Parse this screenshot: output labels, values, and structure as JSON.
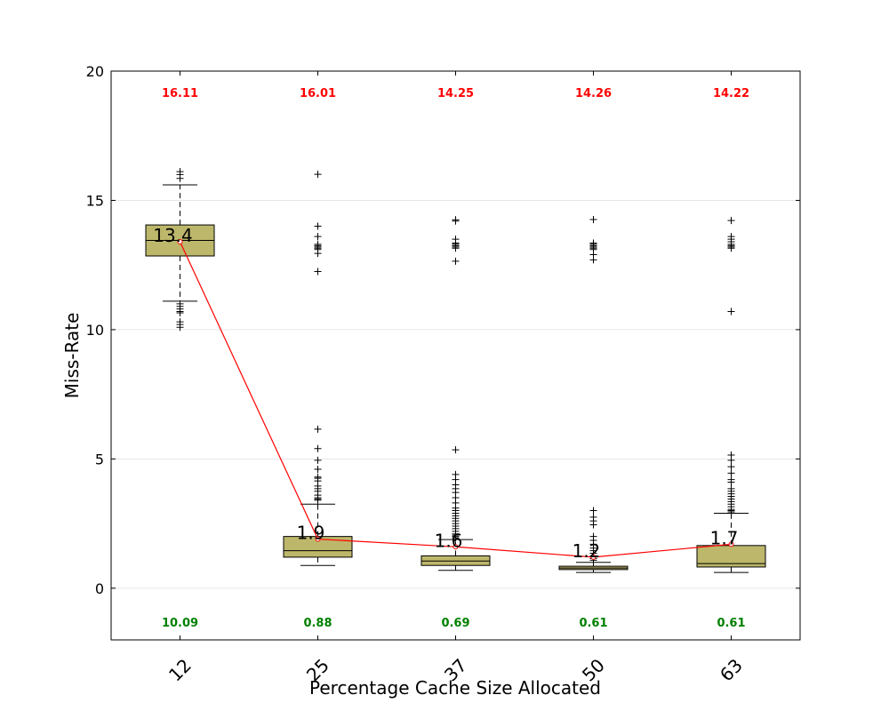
{
  "chart_data": {
    "type": "box",
    "xlabel": "Percentage Cache Size Allocated",
    "ylabel": "Miss-Rate",
    "ylim": [
      -2,
      20
    ],
    "yticks": [
      0,
      5,
      10,
      15,
      20
    ],
    "ytick_labels": [
      "0",
      "5",
      "10",
      "15",
      "20"
    ],
    "grid": "horizontal",
    "categories": [
      "12",
      "25",
      "37",
      "50",
      "63"
    ],
    "boxes": [
      {
        "category": "12",
        "whisker_low": 11.1,
        "q1": 12.85,
        "median": 13.45,
        "q3": 14.05,
        "whisker_high": 15.6,
        "mean": 13.4,
        "outliers": [
          16.11,
          16.0,
          15.85,
          11.0,
          10.9,
          10.8,
          10.7,
          10.65,
          10.3,
          10.2,
          10.09
        ]
      },
      {
        "category": "25",
        "whisker_low": 0.88,
        "q1": 1.2,
        "median": 1.45,
        "q3": 2.0,
        "whisker_high": 3.25,
        "mean": 1.9,
        "outliers": [
          16.01,
          14.0,
          13.6,
          13.3,
          13.25,
          13.2,
          13.15,
          13.1,
          12.95,
          12.25,
          6.15,
          5.4,
          4.95,
          4.6,
          4.3,
          4.25,
          4.15,
          3.95,
          3.85,
          3.75,
          3.6,
          3.5,
          3.45,
          3.4
        ]
      },
      {
        "category": "37",
        "whisker_low": 0.69,
        "q1": 0.88,
        "median": 1.05,
        "q3": 1.25,
        "whisker_high": 1.88,
        "mean": 1.6,
        "outliers": [
          14.25,
          14.2,
          13.5,
          13.35,
          13.3,
          13.25,
          13.2,
          13.15,
          12.65,
          5.35,
          4.4,
          4.2,
          4.0,
          3.85,
          3.7,
          3.5,
          3.3,
          3.1,
          3.0,
          2.9,
          2.8,
          2.7,
          2.6,
          2.5,
          2.4,
          2.3,
          2.2,
          2.1,
          2.05,
          2.0,
          1.95
        ]
      },
      {
        "category": "50",
        "whisker_low": 0.61,
        "q1": 0.72,
        "median": 0.78,
        "q3": 0.85,
        "whisker_high": 1.0,
        "mean": 1.2,
        "outliers": [
          14.26,
          13.35,
          13.3,
          13.25,
          13.2,
          13.15,
          13.1,
          12.9,
          12.7,
          3.0,
          2.75,
          2.6,
          2.45,
          2.0,
          1.85,
          1.7,
          1.55,
          1.45,
          1.35,
          1.25,
          1.15,
          1.08
        ]
      },
      {
        "category": "63",
        "whisker_low": 0.61,
        "q1": 0.82,
        "median": 0.95,
        "q3": 1.65,
        "whisker_high": 2.9,
        "mean": 1.7,
        "outliers": [
          14.22,
          13.6,
          13.5,
          13.4,
          13.3,
          13.25,
          13.2,
          13.15,
          10.7,
          5.15,
          4.95,
          4.7,
          4.45,
          4.2,
          4.1,
          3.85,
          3.75,
          3.65,
          3.55,
          3.45,
          3.35,
          3.25,
          3.15,
          3.05,
          3.0,
          2.95
        ]
      }
    ],
    "max_labels": [
      "16.11",
      "16.01",
      "14.25",
      "14.26",
      "14.22"
    ],
    "min_labels": [
      "10.09",
      "0.88",
      "0.69",
      "0.61",
      "0.61"
    ],
    "mean_labels": [
      "13.4",
      "1.9",
      "1.6",
      "1.2",
      "1.7"
    ],
    "colors": {
      "box_fill": "#bdb76b",
      "mean_line": "#ff0000",
      "max_text": "#ff0000",
      "min_text": "#008000",
      "grid": "#e6e6e6"
    }
  }
}
